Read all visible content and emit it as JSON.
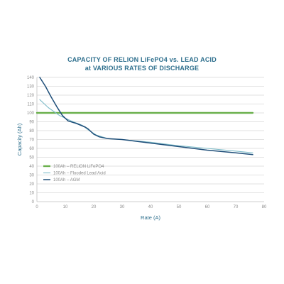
{
  "chart_data": {
    "type": "line",
    "title": "CAPACITY OF RELION LiFePO4 vs. LEAD ACID",
    "subtitle": "at VARIOUS RATES OF DISCHARGE",
    "xlabel": "Rate (A)",
    "ylabel": "Capacity (Ah)",
    "xlim": [
      0,
      80
    ],
    "ylim": [
      0,
      140
    ],
    "xticks": [
      0,
      10,
      20,
      30,
      40,
      50,
      60,
      70,
      80
    ],
    "yticks": [
      0,
      10,
      20,
      30,
      40,
      50,
      60,
      70,
      80,
      90,
      100,
      110,
      120,
      130,
      140
    ],
    "grid": true,
    "legend_position": "bottom-left",
    "series": [
      {
        "name": "100Ah – RELiON LiFePO4",
        "color": "#6ab04c",
        "x": [
          0,
          76
        ],
        "y": [
          100,
          100
        ]
      },
      {
        "name": "100Ah – Flooded Lead Acid",
        "color": "#7fbcc9",
        "x": [
          1,
          4,
          8,
          12,
          16,
          18,
          21,
          25,
          30,
          40,
          50,
          60,
          70,
          76
        ],
        "y": [
          115,
          106,
          97,
          91,
          86,
          81,
          75,
          71,
          70,
          67,
          63,
          60,
          57,
          55
        ]
      },
      {
        "name": "100Ah – AGM",
        "color": "#1e4e79",
        "x": [
          1,
          3,
          5,
          7,
          9,
          11,
          14,
          17,
          18,
          20,
          22,
          25,
          30,
          40,
          50,
          60,
          70,
          76
        ],
        "y": [
          140,
          130,
          118,
          107,
          97,
          91,
          88,
          84,
          82,
          76,
          73,
          71,
          70,
          66,
          62,
          58,
          55,
          53
        ]
      }
    ]
  }
}
